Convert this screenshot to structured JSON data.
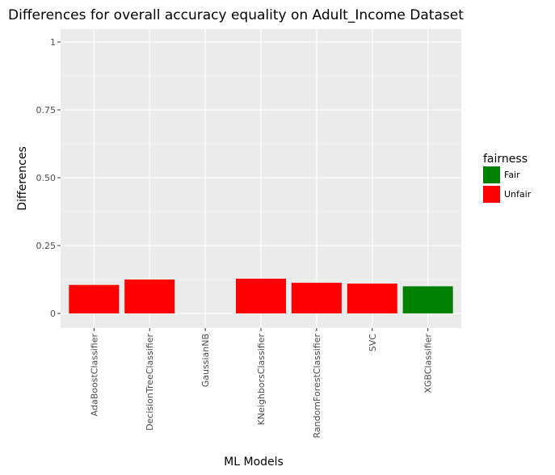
{
  "chart_data": {
    "type": "bar",
    "title": "Differences for overall accuracy equality on Adult_Income Dataset",
    "xlabel": "ML Models",
    "ylabel": "Differences",
    "ylim": [
      0,
      1
    ],
    "yticks": [
      0,
      0.25,
      0.5,
      0.75,
      1
    ],
    "ytick_labels": [
      "0",
      "0.25",
      "0.50",
      "0.75",
      "1"
    ],
    "categories": [
      "AdaBoostClassifier",
      "DecisionTreeClassifier",
      "GaussianNB",
      "KNeighborsClassifier",
      "RandomForestClassifier",
      "SVC",
      "XGBClassifier"
    ],
    "values": [
      0.105,
      0.125,
      0,
      0.128,
      0.113,
      0.11,
      0.1
    ],
    "fairness": [
      "Unfair",
      "Unfair",
      null,
      "Unfair",
      "Unfair",
      "Unfair",
      "Fair"
    ],
    "legend": {
      "title": "fairness",
      "placement": "right",
      "entries": [
        {
          "label": "Fair",
          "color": "#008000"
        },
        {
          "label": "Unfair",
          "color": "#ff0000"
        }
      ]
    },
    "grid": true,
    "panel_background": "#ebebeb"
  }
}
